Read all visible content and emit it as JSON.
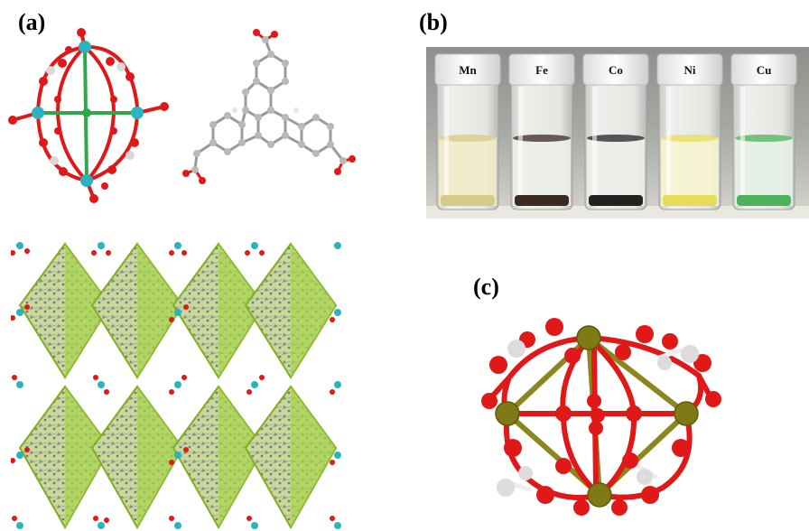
{
  "figure": {
    "labels": {
      "a": "(a)",
      "b": "(b)",
      "c": "(c)"
    }
  },
  "panel_b": {
    "vials": [
      {
        "label": "Mn",
        "liquid": "#f1ebc6",
        "sediment": "#d7c98a"
      },
      {
        "label": "Fe",
        "liquid": "#eceee9",
        "sediment": "#3a2a22"
      },
      {
        "label": "Co",
        "liquid": "#eceee9",
        "sediment": "#222222"
      },
      {
        "label": "Ni",
        "liquid": "#f6f4cf",
        "sediment": "#e7dc5a"
      },
      {
        "label": "Cu",
        "liquid": "#e4f0e4",
        "sediment": "#4db25b"
      }
    ]
  },
  "colors": {
    "oxygen": "#e01818",
    "metal": "#2bb3c0",
    "metal_c": "#7f7a16",
    "hydrogen": "#d9d9d9",
    "carbon": "#b9b9b9",
    "center": "#2fa84a",
    "polyhedron": "#9acd32"
  }
}
